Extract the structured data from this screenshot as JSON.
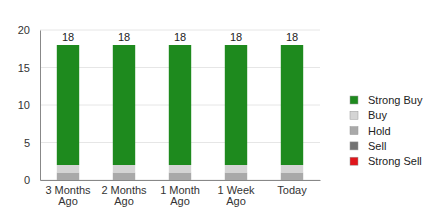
{
  "chart_data": {
    "type": "bar",
    "stacked": true,
    "categories": [
      "3 Months Ago",
      "2 Months Ago",
      "1 Month Ago",
      "1 Week Ago",
      "Today"
    ],
    "series": [
      {
        "name": "Strong Buy",
        "color": "#1e8a1e",
        "values": [
          16,
          16,
          16,
          16,
          16
        ]
      },
      {
        "name": "Buy",
        "color": "#d4d4d4",
        "values": [
          1,
          1,
          1,
          1,
          1
        ]
      },
      {
        "name": "Hold",
        "color": "#a9a9a9",
        "values": [
          1,
          1,
          1,
          1,
          1
        ]
      },
      {
        "name": "Sell",
        "color": "#737373",
        "values": [
          0,
          0,
          0,
          0,
          0
        ]
      },
      {
        "name": "Strong Sell",
        "color": "#e0161b",
        "values": [
          0,
          0,
          0,
          0,
          0
        ]
      }
    ],
    "totals": [
      18,
      18,
      18,
      18,
      18
    ],
    "ylim": [
      0,
      20
    ],
    "yticks": [
      0,
      5,
      10,
      15,
      20
    ],
    "grid": true,
    "legend": "right"
  }
}
